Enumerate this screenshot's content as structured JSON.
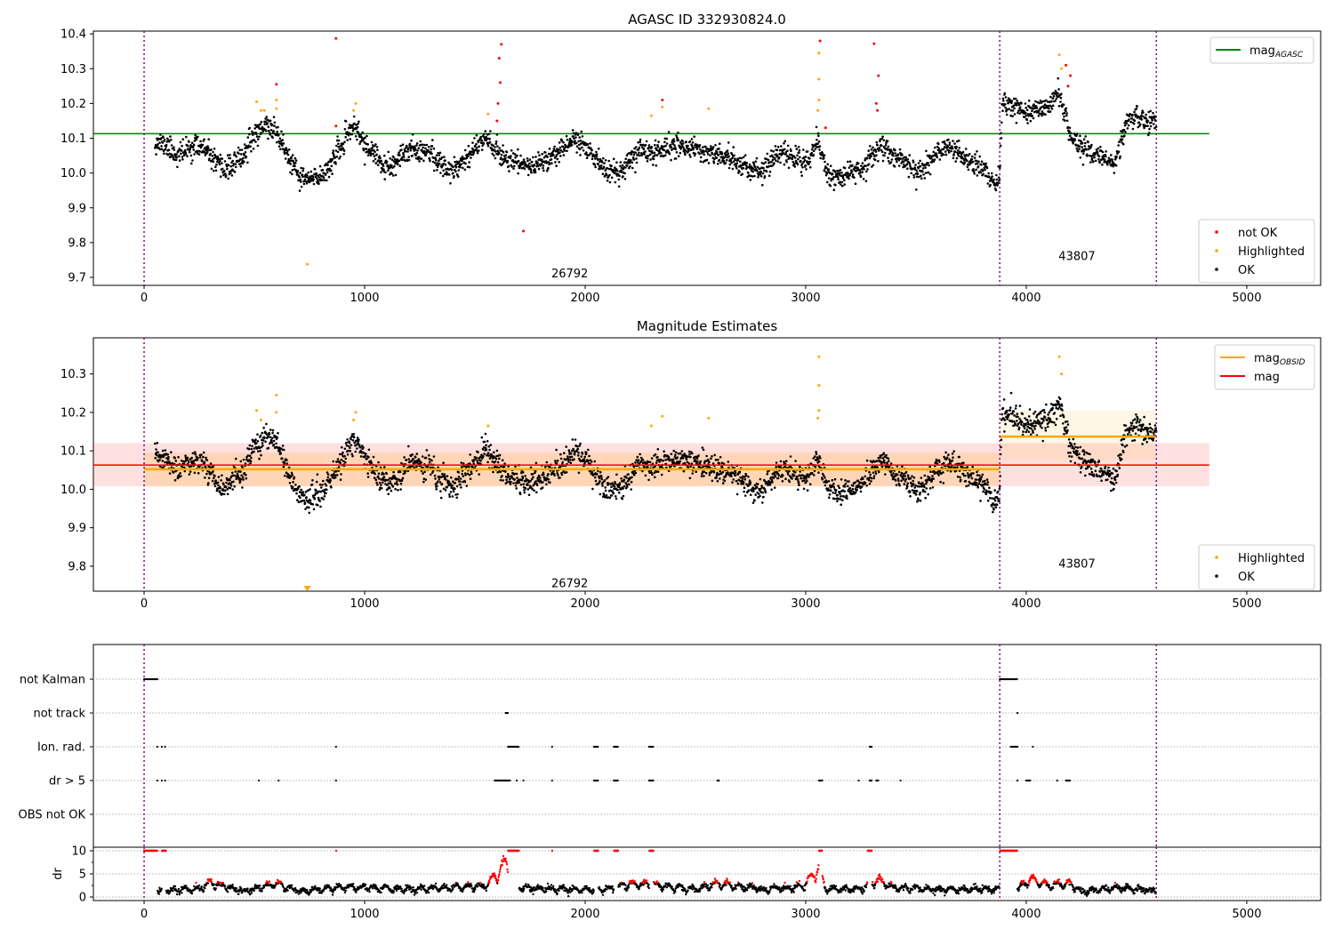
{
  "chart_data": [
    {
      "type": "scatter",
      "title": "AGASC ID 332930824.0",
      "xlim": [
        -230,
        5335
      ],
      "ylim": [
        9.677,
        10.408
      ],
      "xticks": [
        0,
        1000,
        2000,
        3000,
        4000,
        5000
      ],
      "yticks": [
        9.7,
        9.8,
        9.9,
        10.0,
        10.1,
        10.2,
        10.3,
        10.4
      ],
      "ytick_labels": [
        "9.7",
        "9.8",
        "9.9",
        "10.0",
        "10.1",
        "10.2",
        "10.3",
        "10.4"
      ],
      "obs_boundaries": [
        0,
        3880,
        4590
      ],
      "obs_labels": [
        {
          "text": "26792",
          "x": 1930,
          "y": 9.71
        },
        {
          "text": "43807",
          "x": 4230,
          "y": 9.76
        }
      ],
      "mag_agasc": {
        "value": 10.113,
        "x_range": [
          -230,
          4830
        ]
      },
      "legend_lines": [
        {
          "label": "mag",
          "sub": "AGASC",
          "color": "#008000"
        }
      ],
      "legend_points": [
        {
          "label": "not OK",
          "color": "#ff0000"
        },
        {
          "label": "Highlighted",
          "color": "#ffa500"
        },
        {
          "label": "OK",
          "color": "#000000"
        }
      ],
      "not_ok": [
        [
          870,
          10.387
        ],
        [
          1720,
          9.833
        ],
        [
          1620,
          10.37
        ],
        [
          1610,
          10.33
        ],
        [
          1615,
          10.26
        ],
        [
          1605,
          10.2
        ],
        [
          1600,
          10.15
        ],
        [
          3065,
          10.38
        ],
        [
          3310,
          10.372
        ],
        [
          3330,
          10.28
        ],
        [
          3320,
          10.2
        ],
        [
          3325,
          10.18
        ],
        [
          2350,
          10.21
        ],
        [
          600,
          10.255
        ],
        [
          4180,
          10.31
        ],
        [
          4200,
          10.28
        ],
        [
          4190,
          10.25
        ],
        [
          3090,
          10.13
        ],
        [
          870,
          10.135
        ]
      ],
      "highlighted": [
        [
          740,
          9.738
        ],
        [
          510,
          10.205
        ],
        [
          530,
          10.18
        ],
        [
          545,
          10.18
        ],
        [
          600,
          10.21
        ],
        [
          600,
          10.185
        ],
        [
          960,
          10.2
        ],
        [
          950,
          10.18
        ],
        [
          2300,
          10.165
        ],
        [
          2350,
          10.19
        ],
        [
          2560,
          10.185
        ],
        [
          3060,
          10.345
        ],
        [
          3060,
          10.27
        ],
        [
          3060,
          10.21
        ],
        [
          3055,
          10.18
        ],
        [
          4150,
          10.34
        ],
        [
          4160,
          10.3
        ],
        [
          1560,
          10.17
        ]
      ]
    },
    {
      "type": "scatter",
      "title": "Magnitude Estimates",
      "xlim": [
        -230,
        5335
      ],
      "ylim": [
        9.735,
        10.394
      ],
      "xticks": [
        0,
        1000,
        2000,
        3000,
        4000,
        5000
      ],
      "yticks": [
        9.8,
        9.9,
        10.0,
        10.1,
        10.2,
        10.3
      ],
      "ytick_labels": [
        "9.8",
        "9.9",
        "10.0",
        "10.1",
        "10.2",
        "10.3"
      ],
      "obs_labels": [
        {
          "text": "26792",
          "x": 1930,
          "y": 9.755
        },
        {
          "text": "43807",
          "x": 4230,
          "y": 9.805
        }
      ],
      "mag": {
        "value": 10.063,
        "band": [
          10.008,
          10.12
        ],
        "x_range": [
          -230,
          4830
        ]
      },
      "mag_obsid": [
        {
          "obsid": "26792",
          "value": 10.052,
          "band": [
            10.008,
            10.095
          ],
          "x_range": [
            0,
            3880
          ]
        },
        {
          "obsid": "43807",
          "value": 10.137,
          "band": [
            10.075,
            10.205
          ],
          "x_range": [
            3880,
            4590
          ]
        }
      ],
      "legend_lines": [
        {
          "label": "mag",
          "sub": "OBSID",
          "color": "#ffa500"
        },
        {
          "label": "mag",
          "sub": "",
          "color": "#ff0000"
        }
      ],
      "legend_points": [
        {
          "label": "Highlighted",
          "color": "#ffa500"
        },
        {
          "label": "OK",
          "color": "#000000"
        }
      ],
      "highlighted": [
        [
          510,
          10.205
        ],
        [
          530,
          10.18
        ],
        [
          600,
          10.245
        ],
        [
          600,
          10.2
        ],
        [
          960,
          10.2
        ],
        [
          950,
          10.18
        ],
        [
          2300,
          10.165
        ],
        [
          2350,
          10.19
        ],
        [
          2560,
          10.185
        ],
        [
          3060,
          10.345
        ],
        [
          3060,
          10.27
        ],
        [
          3060,
          10.205
        ],
        [
          3055,
          10.185
        ],
        [
          4150,
          10.345
        ],
        [
          4160,
          10.3
        ],
        [
          1560,
          10.165
        ]
      ],
      "below_range_marker": {
        "x": 740
      }
    },
    {
      "type": "scatter",
      "title": "",
      "categories": [
        "not Kalman",
        "not track",
        "Ion. rad.",
        "dr > 5",
        "OBS not OK"
      ],
      "flags": {
        "not Kalman": [
          [
            0,
            60
          ],
          [
            3880,
            3960
          ]
        ],
        "not track": [
          [
            1640,
            1650
          ],
          [
            3960,
            3962
          ]
        ],
        "Ion. rad.": [
          [
            60,
            62
          ],
          [
            80,
            82
          ],
          [
            95,
            97
          ],
          [
            870,
            872
          ],
          [
            1650,
            1700
          ],
          [
            1850,
            1852
          ],
          [
            2040,
            2060
          ],
          [
            2130,
            2150
          ],
          [
            2290,
            2310
          ],
          [
            3290,
            3300
          ],
          [
            3930,
            3960
          ],
          [
            4030,
            4032
          ]
        ],
        "dr > 5": [
          [
            60,
            62
          ],
          [
            80,
            82
          ],
          [
            95,
            97
          ],
          [
            520,
            522
          ],
          [
            610,
            612
          ],
          [
            870,
            872
          ],
          [
            1590,
            1660
          ],
          [
            1690,
            1692
          ],
          [
            1720,
            1722
          ],
          [
            1850,
            1852
          ],
          [
            2040,
            2060
          ],
          [
            2130,
            2150
          ],
          [
            2290,
            2310
          ],
          [
            2600,
            2606
          ],
          [
            3060,
            3075
          ],
          [
            3240,
            3242
          ],
          [
            3290,
            3300
          ],
          [
            3320,
            3330
          ],
          [
            3430,
            3432
          ],
          [
            3960,
            3962
          ],
          [
            4000,
            4020
          ],
          [
            4140,
            4142
          ],
          [
            4180,
            4200
          ]
        ],
        "OBS not OK": []
      }
    },
    {
      "type": "scatter",
      "ylabel": "dr",
      "ylim": [
        -0.77,
        10.77
      ],
      "yticks": [
        0,
        5,
        10
      ],
      "ytick_labels": [
        "0",
        "5",
        "10"
      ],
      "xtick_labels": [
        "0",
        "1000",
        "2000",
        "3000",
        "4000",
        "5000"
      ],
      "dr_clip_ranges": [
        [
          0,
          60
        ],
        [
          80,
          100
        ],
        [
          870,
          872
        ],
        [
          1650,
          1700
        ],
        [
          1850,
          1852
        ],
        [
          2040,
          2060
        ],
        [
          2130,
          2150
        ],
        [
          2290,
          2310
        ],
        [
          3060,
          3075
        ],
        [
          3280,
          3300
        ],
        [
          3880,
          3960
        ]
      ],
      "dr_trend": [
        [
          50,
          1.5
        ],
        [
          250,
          2.2
        ],
        [
          300,
          3.8
        ],
        [
          450,
          1.5
        ],
        [
          600,
          3.5
        ],
        [
          700,
          1.5
        ],
        [
          900,
          2.5
        ],
        [
          1000,
          2.5
        ],
        [
          1200,
          2.0
        ],
        [
          1400,
          2.5
        ],
        [
          1550,
          3.0
        ],
        [
          1600,
          6.0
        ],
        [
          1640,
          9.0
        ],
        [
          1700,
          2.5
        ],
        [
          1900,
          2.0
        ],
        [
          2100,
          2.0
        ],
        [
          2200,
          3.5
        ],
        [
          2300,
          3.2
        ],
        [
          2500,
          2.0
        ],
        [
          2600,
          3.5
        ],
        [
          2800,
          2.0
        ],
        [
          2950,
          2.5
        ],
        [
          3000,
          3.5
        ],
        [
          3060,
          8.0
        ],
        [
          3090,
          2.0
        ],
        [
          3250,
          2.0
        ],
        [
          3330,
          4.5
        ],
        [
          3400,
          2.5
        ],
        [
          3600,
          2.0
        ],
        [
          3880,
          2.0
        ],
        [
          3960,
          2.0
        ],
        [
          4020,
          4.8
        ],
        [
          4100,
          3.0
        ],
        [
          4200,
          3.5
        ],
        [
          4250,
          1.5
        ],
        [
          4450,
          2.5
        ],
        [
          4590,
          1.5
        ]
      ]
    }
  ],
  "mag_trend": [
    [
      50,
      10.09
    ],
    [
      100,
      10.08
    ],
    [
      150,
      10.05
    ],
    [
      200,
      10.07
    ],
    [
      250,
      10.08
    ],
    [
      300,
      10.05
    ],
    [
      350,
      10.01
    ],
    [
      400,
      10.02
    ],
    [
      450,
      10.05
    ],
    [
      500,
      10.11
    ],
    [
      550,
      10.14
    ],
    [
      600,
      10.12
    ],
    [
      650,
      10.05
    ],
    [
      700,
      9.99
    ],
    [
      750,
      9.98
    ],
    [
      800,
      9.99
    ],
    [
      850,
      10.03
    ],
    [
      900,
      10.08
    ],
    [
      950,
      10.14
    ],
    [
      1000,
      10.08
    ],
    [
      1050,
      10.05
    ],
    [
      1100,
      10.01
    ],
    [
      1150,
      10.03
    ],
    [
      1200,
      10.07
    ],
    [
      1250,
      10.07
    ],
    [
      1300,
      10.06
    ],
    [
      1350,
      10.02
    ],
    [
      1400,
      10.01
    ],
    [
      1450,
      10.04
    ],
    [
      1500,
      10.07
    ],
    [
      1550,
      10.11
    ],
    [
      1600,
      10.06
    ],
    [
      1650,
      10.04
    ],
    [
      1700,
      10.03
    ],
    [
      1750,
      10.02
    ],
    [
      1800,
      10.03
    ],
    [
      1850,
      10.05
    ],
    [
      1900,
      10.07
    ],
    [
      1950,
      10.1
    ],
    [
      2000,
      10.08
    ],
    [
      2050,
      10.04
    ],
    [
      2100,
      10.0
    ],
    [
      2150,
      10.0
    ],
    [
      2200,
      10.03
    ],
    [
      2250,
      10.07
    ],
    [
      2300,
      10.06
    ],
    [
      2350,
      10.07
    ],
    [
      2400,
      10.08
    ],
    [
      2450,
      10.08
    ],
    [
      2500,
      10.07
    ],
    [
      2550,
      10.06
    ],
    [
      2600,
      10.05
    ],
    [
      2650,
      10.04
    ],
    [
      2700,
      10.03
    ],
    [
      2750,
      10.01
    ],
    [
      2800,
      10.0
    ],
    [
      2850,
      10.04
    ],
    [
      2900,
      10.06
    ],
    [
      2950,
      10.04
    ],
    [
      3000,
      10.03
    ],
    [
      3050,
      10.09
    ],
    [
      3100,
      10.0
    ],
    [
      3150,
      9.99
    ],
    [
      3200,
      10.0
    ],
    [
      3250,
      10.01
    ],
    [
      3300,
      10.05
    ],
    [
      3350,
      10.08
    ],
    [
      3400,
      10.05
    ],
    [
      3450,
      10.03
    ],
    [
      3500,
      10.0
    ],
    [
      3550,
      10.02
    ],
    [
      3600,
      10.06
    ],
    [
      3650,
      10.07
    ],
    [
      3700,
      10.06
    ],
    [
      3750,
      10.03
    ],
    [
      3800,
      10.02
    ],
    [
      3850,
      9.97
    ],
    [
      3879,
      9.98
    ],
    [
      3890,
      10.2
    ],
    [
      3950,
      10.19
    ],
    [
      4000,
      10.17
    ],
    [
      4050,
      10.18
    ],
    [
      4100,
      10.19
    ],
    [
      4150,
      10.23
    ],
    [
      4200,
      10.11
    ],
    [
      4250,
      10.08
    ],
    [
      4300,
      10.06
    ],
    [
      4350,
      10.05
    ],
    [
      4400,
      10.02
    ],
    [
      4450,
      10.14
    ],
    [
      4500,
      10.17
    ],
    [
      4550,
      10.15
    ],
    [
      4590,
      10.15
    ]
  ],
  "colors": {
    "boundary": "#800080",
    "agasc": "#008000",
    "obsid": "#ffa500",
    "mag": "#ff0000",
    "not_ok": "#ff0000",
    "highlighted": "#ffa500",
    "ok": "#000000"
  }
}
